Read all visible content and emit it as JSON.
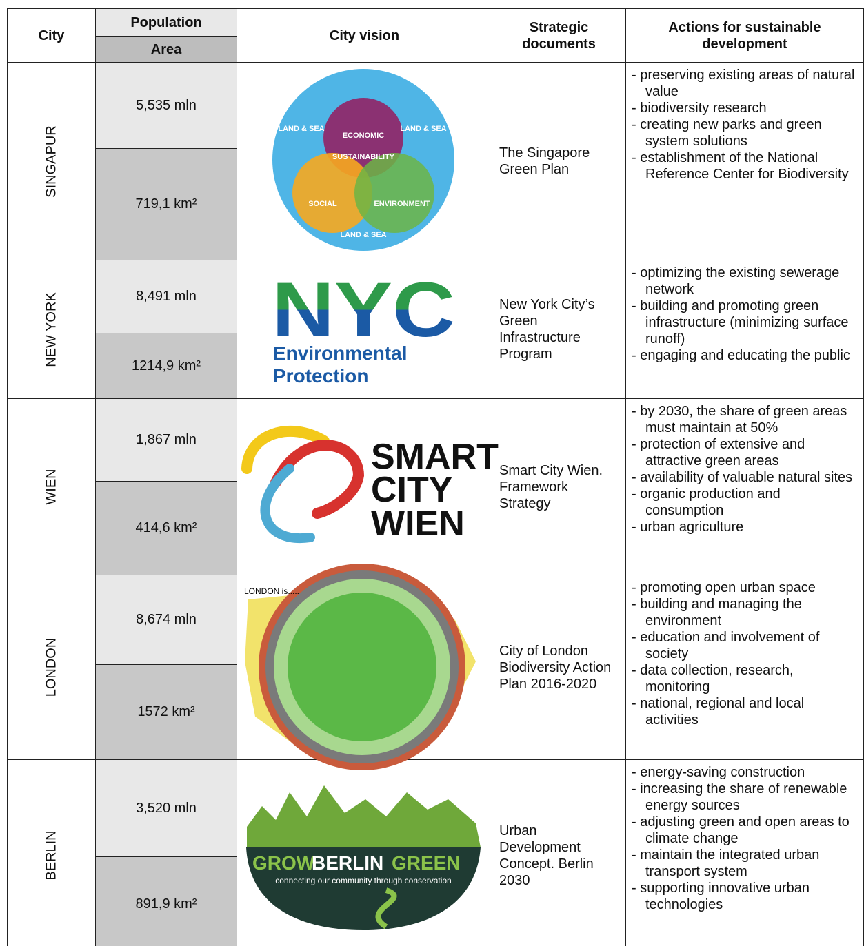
{
  "header": {
    "city": "City",
    "population": "Population",
    "area": "Area",
    "vision": "City vision",
    "documents": "Strategic documents",
    "actions": "Actions for sustainable development"
  },
  "rows": [
    {
      "city": "SINGAPUR",
      "population": "5,535 mln",
      "area": "719,1 km²",
      "document": "The Singapore Green Plan",
      "logo": [
        "LAND & SEA",
        "LAND & SEA",
        "ECONOMIC",
        "SUSTAINABILITY",
        "SOCIAL",
        "ENVIRONMENT",
        "LAND & SEA"
      ],
      "actions": [
        "- preserving existing areas of natural value",
        "- biodiversity research",
        "- creating new parks and green system solutions",
        "- establishment of the National Reference Center for Biodiversity"
      ]
    },
    {
      "city": "NEW YORK",
      "population": "8,491 mln",
      "area": "1214,9 km²",
      "document": "New York City’s Green Infrastructure Program",
      "logo": [
        "NYC",
        "Environmental",
        "Protection"
      ],
      "actions": [
        "- optimizing the existing sewerage network",
        "- building and promoting green infrastructure (minimizing surface runoff)",
        "- engaging and educating the public"
      ]
    },
    {
      "city": "WIEN",
      "population": "1,867 mln",
      "area": "414,6 km²",
      "document": "Smart City Wien. Framework Strategy",
      "logo": [
        "SMART",
        "CITY",
        "WIEN"
      ],
      "actions": [
        "- by 2030, the share of green areas must maintain at 50%",
        "- protection of extensive and attractive green areas",
        "- availability of valuable natural sites",
        "- organic production and consumption",
        "- urban agriculture"
      ]
    },
    {
      "city": "LONDON",
      "population": "8,674 mln",
      "area": "1572 km²",
      "document": "City of London Biodiversity Action Plan 2016-2020",
      "logo": [
        "LONDON is....."
      ],
      "actions": [
        "- promoting open urban space",
        "- building and managing the environment",
        "- education and involvement of society",
        "- data collection, research, monitoring",
        "- national, regional and local activities"
      ]
    },
    {
      "city": "BERLIN",
      "population": "3,520 mln",
      "area": "891,9 km²",
      "document": "Urban Development Concept. Berlin 2030",
      "logo": [
        "GROW",
        "BERLIN",
        "GREEN",
        "connecting our community through conservation"
      ],
      "actions": [
        "- energy-saving construction",
        "- increasing the share of renewable energy sources",
        "- adjusting green and open areas to climate change",
        "- maintain the integrated urban transport system",
        "- supporting innovative urban technologies"
      ]
    }
  ]
}
